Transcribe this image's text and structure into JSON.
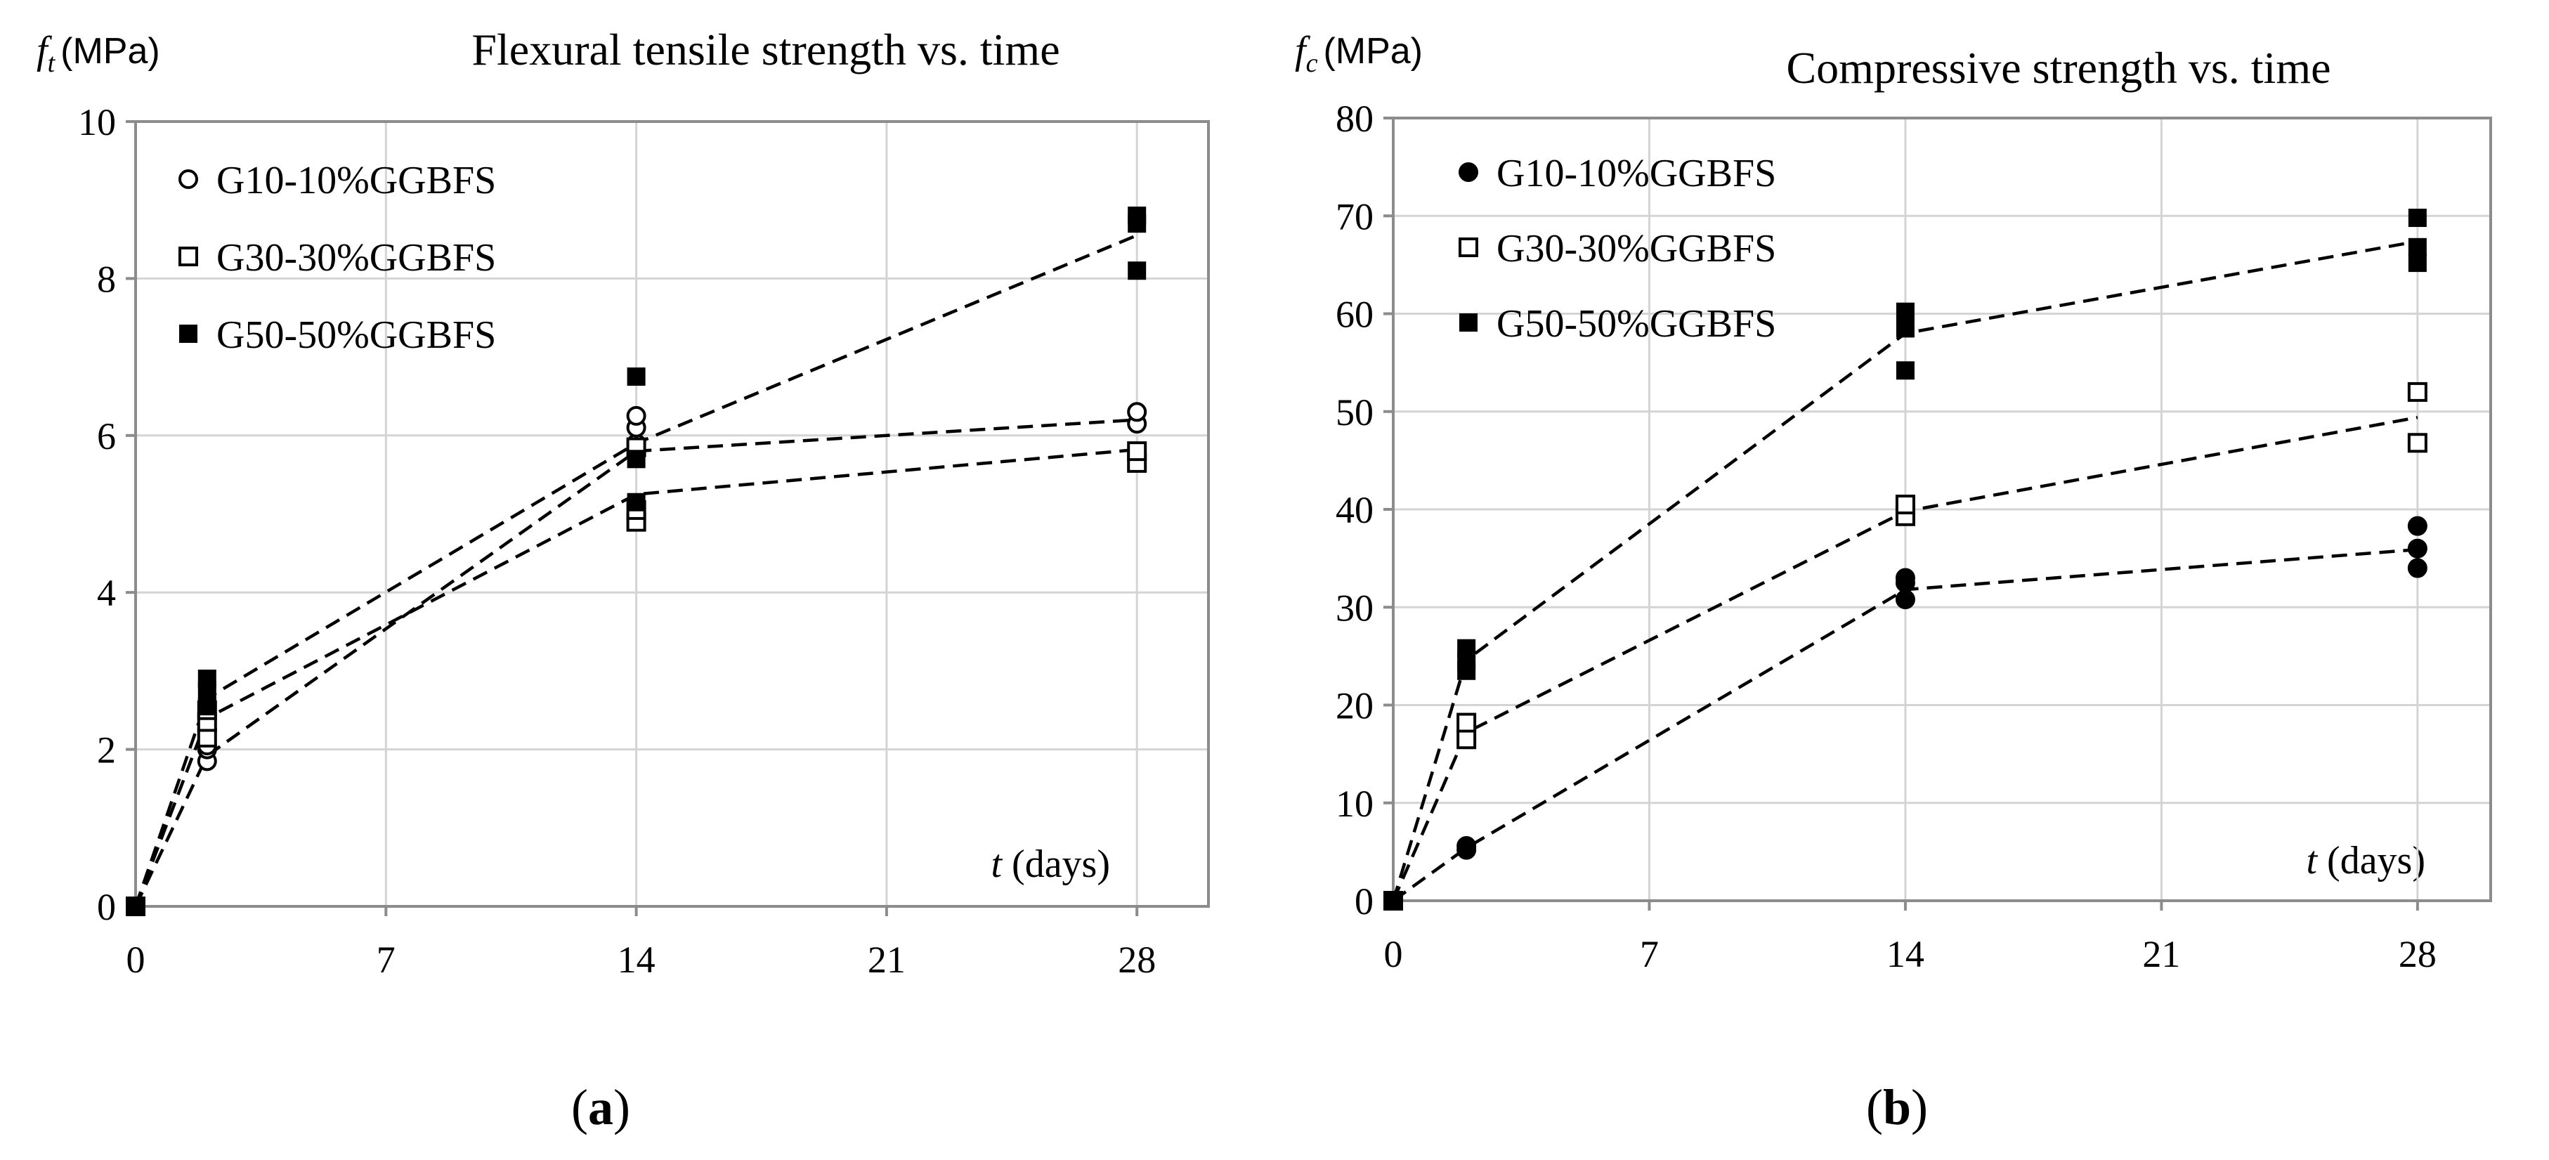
{
  "chart_data": [
    {
      "panel": "a",
      "type": "scatter",
      "title": "Flexural tensile strength vs. time",
      "ylabel_symbol": "f",
      "ylabel_sub": "t",
      "ylabel_unit": "(MPa)",
      "xlabel_symbol": "t",
      "xlabel_unit": "(days)",
      "caption_label": "a",
      "xlim": [
        0,
        30
      ],
      "ylim": [
        0,
        10
      ],
      "xticks": [
        0,
        7,
        14,
        21,
        28
      ],
      "yticks": [
        0,
        2,
        4,
        6,
        8,
        10
      ],
      "grid": true,
      "legend_position": "top-left",
      "series": [
        {
          "name": "G10-10%GGBFS",
          "marker": "circle-open",
          "points": [
            [
              0,
              0
            ],
            [
              2,
              1.85
            ],
            [
              2,
              2.0
            ],
            [
              2,
              2.05
            ],
            [
              14,
              5.9
            ],
            [
              14,
              6.1
            ],
            [
              14,
              6.25
            ],
            [
              28,
              6.15
            ],
            [
              28,
              6.3
            ]
          ],
          "trend": [
            [
              0,
              0
            ],
            [
              2,
              1.92
            ],
            [
              14,
              5.8
            ],
            [
              28,
              6.2
            ]
          ]
        },
        {
          "name": "G30-30%GGBFS",
          "marker": "square-open",
          "points": [
            [
              0,
              0
            ],
            [
              2,
              2.15
            ],
            [
              2,
              2.35
            ],
            [
              2,
              2.5
            ],
            [
              14,
              4.9
            ],
            [
              14,
              5.05
            ],
            [
              14,
              5.85
            ],
            [
              28,
              5.65
            ],
            [
              28,
              5.8
            ]
          ],
          "trend": [
            [
              0,
              0
            ],
            [
              2,
              2.4
            ],
            [
              14,
              5.25
            ],
            [
              28,
              5.82
            ]
          ]
        },
        {
          "name": "G50-50%GGBFS",
          "marker": "square-filled",
          "points": [
            [
              0,
              0
            ],
            [
              2,
              2.55
            ],
            [
              2,
              2.75
            ],
            [
              2,
              2.9
            ],
            [
              14,
              5.15
            ],
            [
              14,
              5.7
            ],
            [
              14,
              6.75
            ],
            [
              28,
              8.1
            ],
            [
              28,
              8.7
            ],
            [
              28,
              8.8
            ]
          ],
          "trend": [
            [
              0,
              0
            ],
            [
              2,
              2.65
            ],
            [
              14,
              5.9
            ],
            [
              28,
              8.55
            ]
          ]
        }
      ]
    },
    {
      "panel": "b",
      "type": "scatter",
      "title": "Compressive strength vs. time",
      "ylabel_symbol": "f",
      "ylabel_sub": "c",
      "ylabel_unit": "(MPa)",
      "xlabel_symbol": "t",
      "xlabel_unit": "(days)",
      "caption_label": "b",
      "xlim": [
        0,
        30
      ],
      "ylim": [
        0,
        80
      ],
      "xticks": [
        0,
        7,
        14,
        21,
        28
      ],
      "yticks": [
        0,
        10,
        20,
        30,
        40,
        50,
        60,
        70,
        80
      ],
      "grid": true,
      "legend_position": "top-left",
      "series": [
        {
          "name": "G10-10%GGBFS",
          "marker": "circle-filled",
          "points": [
            [
              0,
              0
            ],
            [
              2,
              5.2
            ],
            [
              2,
              5.6
            ],
            [
              14,
              30.8
            ],
            [
              14,
              32.5
            ],
            [
              14,
              33.0
            ],
            [
              28,
              34.0
            ],
            [
              28,
              36.0
            ],
            [
              28,
              38.3
            ]
          ],
          "trend": [
            [
              0,
              0
            ],
            [
              2,
              5.4
            ],
            [
              14,
              31.8
            ],
            [
              28,
              35.9
            ]
          ]
        },
        {
          "name": "G30-30%GGBFS",
          "marker": "square-open",
          "points": [
            [
              0,
              0
            ],
            [
              2,
              16.5
            ],
            [
              2,
              18.2
            ],
            [
              14,
              39.3
            ],
            [
              14,
              40.5
            ],
            [
              28,
              46.8
            ],
            [
              28,
              52.0
            ]
          ],
          "trend": [
            [
              0,
              0
            ],
            [
              2,
              17.2
            ],
            [
              14,
              39.8
            ],
            [
              28,
              49.4
            ]
          ]
        },
        {
          "name": "G50-50%GGBFS",
          "marker": "square-filled",
          "points": [
            [
              0,
              0
            ],
            [
              2,
              23.5
            ],
            [
              2,
              24.5
            ],
            [
              2,
              25.8
            ],
            [
              14,
              54.2
            ],
            [
              14,
              58.5
            ],
            [
              14,
              60.2
            ],
            [
              28,
              65.2
            ],
            [
              28,
              66.8
            ],
            [
              28,
              69.8
            ]
          ],
          "trend": [
            [
              0,
              0
            ],
            [
              2,
              24.6
            ],
            [
              14,
              58.0
            ],
            [
              28,
              67.4
            ]
          ]
        }
      ]
    }
  ]
}
